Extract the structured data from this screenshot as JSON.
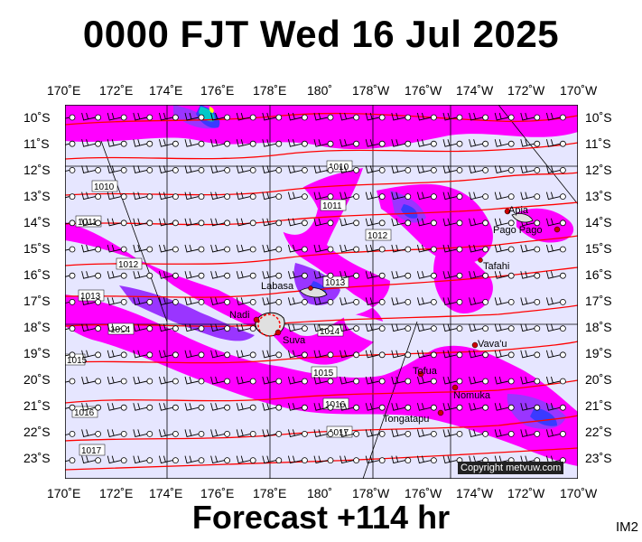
{
  "title": "0000 FJT Wed 16 Jul 2025",
  "footer": "Forecast +114 hr",
  "code": "IM2",
  "copyright": "Copyright metvuw.com",
  "lon_labels": [
    "170˚E",
    "172˚E",
    "174˚E",
    "176˚E",
    "178˚E",
    "180˚",
    "178˚W",
    "176˚W",
    "174˚W",
    "172˚W",
    "170˚W"
  ],
  "lat_labels": [
    "10˚S",
    "11˚S",
    "12˚S",
    "13˚S",
    "14˚S",
    "15˚S",
    "16˚S",
    "17˚S",
    "18˚S",
    "19˚S",
    "20˚S",
    "21˚S",
    "22˚S",
    "23˚S"
  ],
  "places": [
    {
      "name": "Apia"
    },
    {
      "name": "Pago Pago"
    },
    {
      "name": "Tafahi"
    },
    {
      "name": "Labasa"
    },
    {
      "name": "Nadi"
    },
    {
      "name": "Suva"
    },
    {
      "name": "Vava'u"
    },
    {
      "name": "Tofua"
    },
    {
      "name": "Nomuka"
    },
    {
      "name": "Tongatapu"
    }
  ],
  "isobars": [
    "1010",
    "1010",
    "1011",
    "1011",
    "1012",
    "1012",
    "1013",
    "1013",
    "1014",
    "1014",
    "1015",
    "1015",
    "1016",
    "1016",
    "1017",
    "1017"
  ],
  "colors": {
    "background": "#e6e6ff",
    "magenta": "#ff00ff",
    "violet": "#9a35ff",
    "blue": "#3a3aff",
    "isobar": "#ff0000"
  }
}
